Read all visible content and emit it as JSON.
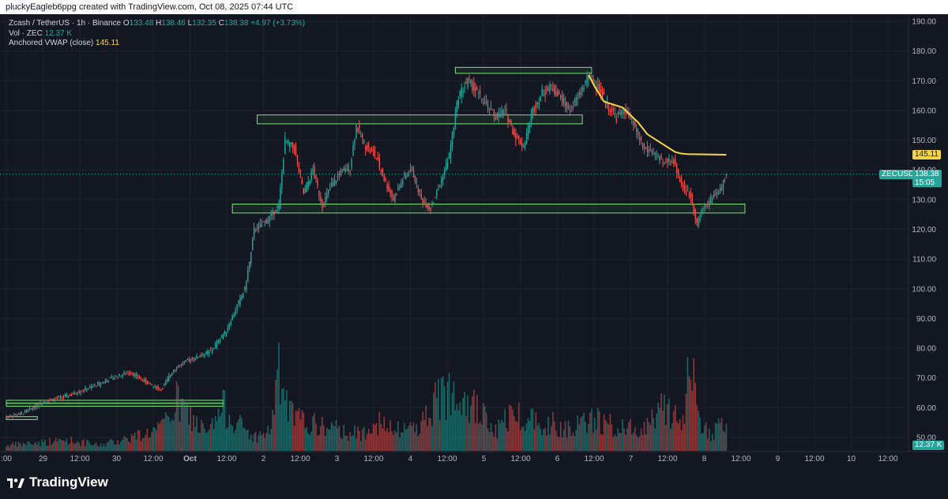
{
  "header": {
    "caption": "pluckyEagleb6ppg created with TradingView.com, Oct 08, 2025 07:44 UTC"
  },
  "legend": {
    "symbol_line": "Zcash / TetherUS · 1h · Binance",
    "o_key": "O",
    "o_val": "133.48",
    "h_key": "H",
    "h_val": "138.46",
    "l_key": "L",
    "l_val": "132.35",
    "c_key": "C",
    "c_val": "138.38",
    "change": "+4.97 (+3.73%)",
    "vol_label": "Vol · ZEC",
    "vol_val": "12.37 K",
    "vwap_label": "Anchored VWAP (close)",
    "vwap_val": "145.11"
  },
  "tags": {
    "vwap": "145.11",
    "symbol": "ZECUSDT",
    "last_price": "138.38",
    "countdown": "15:05",
    "volume": "12.37 K"
  },
  "footer": {
    "brand": "TradingView"
  },
  "colors": {
    "background": "#131722",
    "bull": "#26a69a",
    "bear": "#ef5350",
    "vwap": "#f5d547",
    "zone": "#7ee07e",
    "grid": "#1e222d",
    "axis_text": "#b2b5be"
  },
  "chart_data": {
    "type": "candlestick",
    "title": "Zcash / TetherUS · 1h · Binance",
    "y_ticks": [
      50,
      60,
      70,
      80,
      90,
      100,
      110,
      120,
      130,
      140,
      150,
      160,
      170,
      180,
      190
    ],
    "y_tick_labels": [
      "50.00",
      "60.00",
      "70.00",
      "80.00",
      "90.00",
      "100.00",
      "110.00",
      "120.00",
      "130.00",
      "140.00",
      "150.00",
      "160.00",
      "170.00",
      "180.00",
      "190.00"
    ],
    "ylim": [
      47,
      193
    ],
    "x_tick_labels": [
      ":00",
      "29",
      "12:00",
      "30",
      "12:00",
      "Oct",
      "12:00",
      "2",
      "12:00",
      "3",
      "12:00",
      "4",
      "12:00",
      "5",
      "12:00",
      "6",
      "12:00",
      "7",
      "12:00",
      "8",
      "12:00",
      "9",
      "12:00",
      "10",
      "12:00"
    ],
    "last_price": 138.38,
    "price_path_hourly": [
      [
        0,
        57
      ],
      [
        10,
        58
      ],
      [
        24,
        62
      ],
      [
        40,
        64
      ],
      [
        55,
        67
      ],
      [
        68,
        70
      ],
      [
        80,
        72
      ],
      [
        92,
        68
      ],
      [
        100,
        66
      ],
      [
        108,
        73
      ],
      [
        118,
        76
      ],
      [
        132,
        79
      ],
      [
        142,
        86
      ],
      [
        148,
        93
      ],
      [
        154,
        100
      ],
      [
        158,
        112
      ],
      [
        160,
        120
      ],
      [
        166,
        122
      ],
      [
        170,
        124
      ],
      [
        176,
        128
      ],
      [
        180,
        150
      ],
      [
        186,
        147
      ],
      [
        192,
        132
      ],
      [
        198,
        140
      ],
      [
        204,
        128
      ],
      [
        210,
        135
      ],
      [
        216,
        139
      ],
      [
        222,
        141
      ],
      [
        226,
        155
      ],
      [
        232,
        148
      ],
      [
        238,
        145
      ],
      [
        244,
        137
      ],
      [
        250,
        130
      ],
      [
        256,
        137
      ],
      [
        262,
        140
      ],
      [
        268,
        130
      ],
      [
        274,
        127
      ],
      [
        280,
        135
      ],
      [
        286,
        145
      ],
      [
        292,
        165
      ],
      [
        298,
        170
      ],
      [
        304,
        166
      ],
      [
        310,
        162
      ],
      [
        316,
        158
      ],
      [
        322,
        160
      ],
      [
        328,
        152
      ],
      [
        334,
        148
      ],
      [
        340,
        160
      ],
      [
        346,
        166
      ],
      [
        352,
        168
      ],
      [
        358,
        164
      ],
      [
        364,
        160
      ],
      [
        370,
        165
      ],
      [
        376,
        172
      ],
      [
        382,
        168
      ],
      [
        388,
        162
      ],
      [
        394,
        158
      ],
      [
        400,
        160
      ],
      [
        406,
        154
      ],
      [
        412,
        147
      ],
      [
        418,
        146
      ],
      [
        424,
        142
      ],
      [
        430,
        144
      ],
      [
        436,
        135
      ],
      [
        442,
        131
      ],
      [
        446,
        122
      ],
      [
        450,
        127
      ],
      [
        456,
        131
      ],
      [
        462,
        134
      ],
      [
        465,
        138.38
      ]
    ],
    "volume_hourly_k": [
      [
        0,
        2
      ],
      [
        20,
        3
      ],
      [
        40,
        4
      ],
      [
        60,
        2
      ],
      [
        80,
        5
      ],
      [
        100,
        8
      ],
      [
        110,
        18
      ],
      [
        130,
        6
      ],
      [
        140,
        16
      ],
      [
        150,
        10
      ],
      [
        160,
        5
      ],
      [
        170,
        7
      ],
      [
        176,
        28
      ],
      [
        182,
        15
      ],
      [
        186,
        12
      ],
      [
        196,
        10
      ],
      [
        212,
        8
      ],
      [
        230,
        6
      ],
      [
        236,
        12
      ],
      [
        250,
        7
      ],
      [
        268,
        10
      ],
      [
        274,
        16
      ],
      [
        292,
        26
      ],
      [
        300,
        18
      ],
      [
        316,
        7
      ],
      [
        326,
        14
      ],
      [
        340,
        12
      ],
      [
        360,
        9
      ],
      [
        374,
        10
      ],
      [
        380,
        12
      ],
      [
        396,
        8
      ],
      [
        412,
        9
      ],
      [
        426,
        18
      ],
      [
        430,
        14
      ],
      [
        436,
        7
      ],
      [
        442,
        38
      ],
      [
        446,
        12
      ],
      [
        456,
        6
      ],
      [
        465,
        12.37
      ]
    ],
    "vwap_points": [
      [
        376,
        172
      ],
      [
        380,
        168
      ],
      [
        386,
        163
      ],
      [
        392,
        162
      ],
      [
        398,
        161
      ],
      [
        404,
        158
      ],
      [
        408,
        156
      ],
      [
        414,
        152
      ],
      [
        420,
        150
      ],
      [
        426,
        148
      ],
      [
        432,
        146
      ],
      [
        436,
        145.5
      ],
      [
        440,
        145.3
      ],
      [
        465,
        145.11
      ]
    ],
    "zones": [
      [
        0,
        60.5,
        140,
        61.5
      ],
      [
        0,
        61.5,
        140,
        62.5
      ],
      [
        0,
        56.0,
        20,
        57.0
      ],
      [
        146,
        125.5,
        477,
        128.5
      ],
      [
        162,
        155.5,
        372,
        158.5
      ],
      [
        290,
        172.5,
        378,
        174.5
      ]
    ],
    "grid": true
  }
}
